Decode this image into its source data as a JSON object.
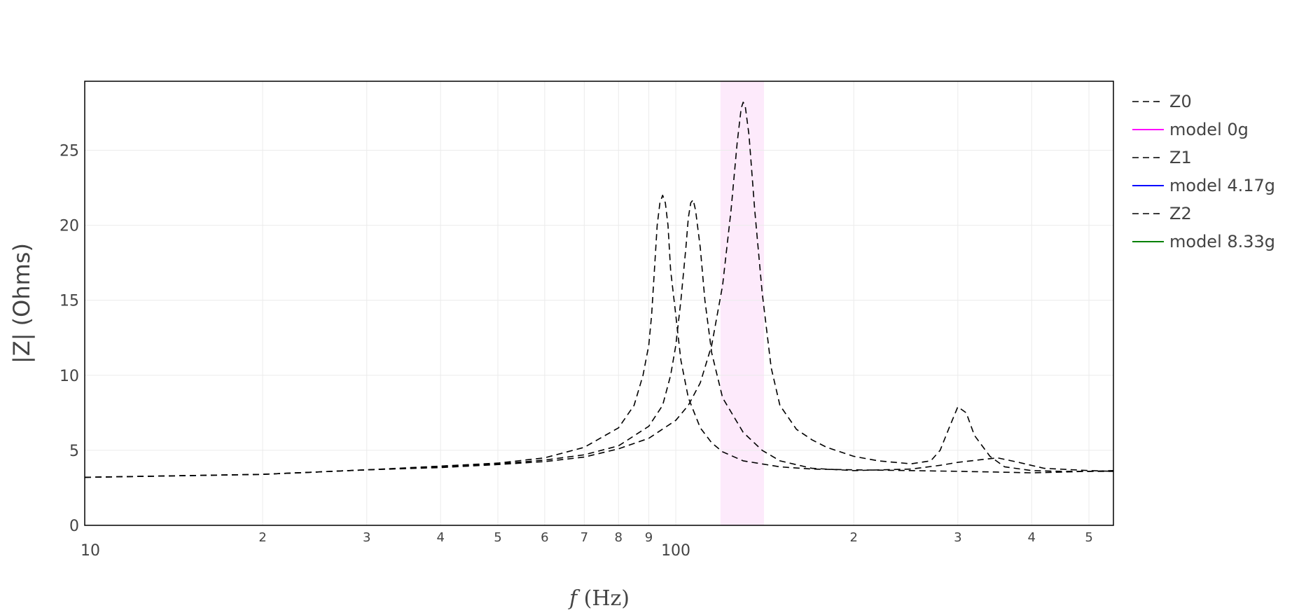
{
  "chart_data": {
    "type": "line",
    "xlabel_italic": "f",
    "xlabel_rest": " (Hz)",
    "ylabel": "|Z| (Ohms)",
    "xscale": "log",
    "xlim": [
      10,
      550
    ],
    "ylim": [
      0,
      29.6
    ],
    "grid": true,
    "legend_position": "right",
    "y_ticks": [
      0,
      5,
      10,
      15,
      20,
      25
    ],
    "x_ticks_major": [
      {
        "value": 10,
        "label": "10"
      },
      {
        "value": 100,
        "label": "100"
      }
    ],
    "x_ticks_minor": [
      {
        "value": 20,
        "label": "2"
      },
      {
        "value": 30,
        "label": "3"
      },
      {
        "value": 40,
        "label": "4"
      },
      {
        "value": 50,
        "label": "5"
      },
      {
        "value": 60,
        "label": "6"
      },
      {
        "value": 70,
        "label": "7"
      },
      {
        "value": 80,
        "label": "8"
      },
      {
        "value": 90,
        "label": "9"
      },
      {
        "value": 200,
        "label": "2"
      },
      {
        "value": 300,
        "label": "3"
      },
      {
        "value": 400,
        "label": "4"
      },
      {
        "value": 500,
        "label": "5"
      }
    ],
    "highlight_band": {
      "x0": 119,
      "x1": 141,
      "color": "#fdeafb"
    },
    "series": [
      {
        "name": "Z0",
        "color": "#000000",
        "dash": true,
        "points": [
          [
            10,
            3.2
          ],
          [
            20,
            3.4
          ],
          [
            30,
            3.7
          ],
          [
            40,
            3.95
          ],
          [
            50,
            4.15
          ],
          [
            60,
            4.5
          ],
          [
            70,
            5.2
          ],
          [
            80,
            6.5
          ],
          [
            85,
            8
          ],
          [
            88,
            10
          ],
          [
            90,
            12
          ],
          [
            91,
            14
          ],
          [
            92,
            17
          ],
          [
            93,
            20
          ],
          [
            94,
            21.5
          ],
          [
            95,
            22
          ],
          [
            96,
            21.5
          ],
          [
            97,
            20
          ],
          [
            98,
            17
          ],
          [
            100,
            14
          ],
          [
            102,
            11
          ],
          [
            105,
            8.5
          ],
          [
            110,
            6.5
          ],
          [
            115,
            5.5
          ],
          [
            120,
            4.9
          ],
          [
            130,
            4.3
          ],
          [
            150,
            3.9
          ],
          [
            170,
            3.75
          ],
          [
            200,
            3.7
          ],
          [
            250,
            3.65
          ],
          [
            300,
            3.6
          ],
          [
            350,
            3.55
          ],
          [
            400,
            3.5
          ],
          [
            450,
            3.55
          ],
          [
            500,
            3.6
          ],
          [
            550,
            3.6
          ]
        ]
      },
      {
        "name": "model 0g",
        "color": "#ff00ff",
        "dash": false,
        "points": []
      },
      {
        "name": "Z1",
        "color": "#000000",
        "dash": true,
        "points": [
          [
            10,
            3.2
          ],
          [
            20,
            3.4
          ],
          [
            30,
            3.7
          ],
          [
            40,
            3.9
          ],
          [
            50,
            4.1
          ],
          [
            60,
            4.35
          ],
          [
            70,
            4.7
          ],
          [
            80,
            5.3
          ],
          [
            90,
            6.6
          ],
          [
            95,
            8
          ],
          [
            98,
            10
          ],
          [
            100,
            12
          ],
          [
            102,
            15
          ],
          [
            104,
            18.5
          ],
          [
            105,
            20.5
          ],
          [
            106,
            21.5
          ],
          [
            107,
            21.7
          ],
          [
            108,
            21
          ],
          [
            110,
            18.5
          ],
          [
            112,
            15
          ],
          [
            115,
            11.5
          ],
          [
            120,
            8.5
          ],
          [
            130,
            6.2
          ],
          [
            140,
            5
          ],
          [
            150,
            4.3
          ],
          [
            170,
            3.8
          ],
          [
            200,
            3.65
          ],
          [
            250,
            3.75
          ],
          [
            280,
            4
          ],
          [
            300,
            4.2
          ],
          [
            350,
            4.5
          ],
          [
            380,
            4.2
          ],
          [
            420,
            3.8
          ],
          [
            500,
            3.65
          ],
          [
            550,
            3.6
          ]
        ]
      },
      {
        "name": "model 4.17g",
        "color": "#0000ff",
        "dash": false,
        "points": []
      },
      {
        "name": "Z2",
        "color": "#000000",
        "dash": true,
        "points": [
          [
            10,
            3.2
          ],
          [
            20,
            3.4
          ],
          [
            30,
            3.7
          ],
          [
            40,
            3.85
          ],
          [
            50,
            4.05
          ],
          [
            60,
            4.25
          ],
          [
            70,
            4.55
          ],
          [
            80,
            5.1
          ],
          [
            90,
            5.8
          ],
          [
            100,
            7
          ],
          [
            105,
            8
          ],
          [
            110,
            9.5
          ],
          [
            115,
            12
          ],
          [
            120,
            16
          ],
          [
            124,
            21
          ],
          [
            127,
            25.5
          ],
          [
            129,
            27.8
          ],
          [
            130,
            28.2
          ],
          [
            131,
            28
          ],
          [
            133,
            26
          ],
          [
            136,
            21
          ],
          [
            140,
            15.5
          ],
          [
            145,
            10.5
          ],
          [
            150,
            8
          ],
          [
            160,
            6.4
          ],
          [
            170,
            5.7
          ],
          [
            180,
            5.2
          ],
          [
            200,
            4.6
          ],
          [
            220,
            4.3
          ],
          [
            250,
            4.1
          ],
          [
            270,
            4.3
          ],
          [
            280,
            5
          ],
          [
            290,
            6.5
          ],
          [
            300,
            7.9
          ],
          [
            310,
            7.5
          ],
          [
            320,
            6
          ],
          [
            340,
            4.6
          ],
          [
            360,
            3.9
          ],
          [
            400,
            3.65
          ],
          [
            450,
            3.6
          ],
          [
            500,
            3.6
          ],
          [
            550,
            3.65
          ]
        ]
      },
      {
        "name": "model 8.33g",
        "color": "#008000",
        "dash": false,
        "points": []
      }
    ]
  }
}
